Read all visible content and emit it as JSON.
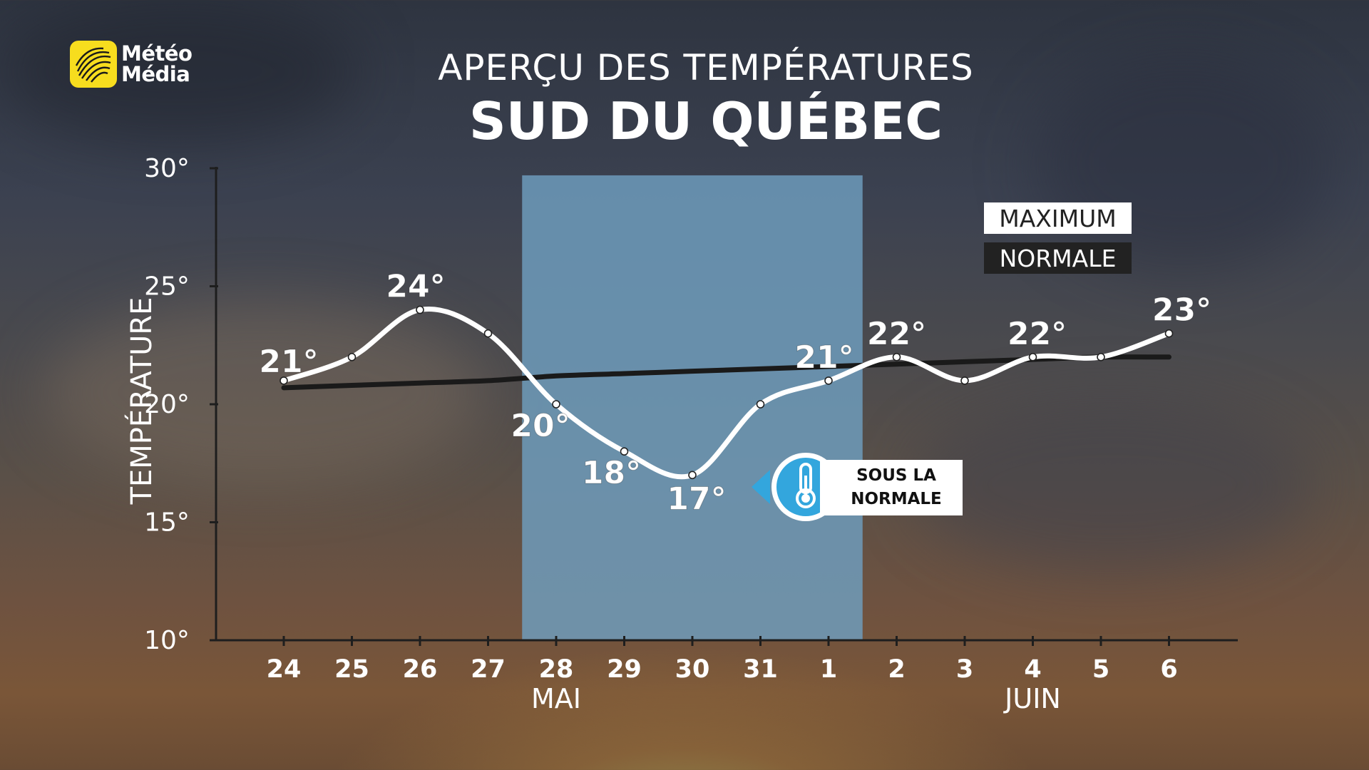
{
  "brand": {
    "logo_line1": "Météo",
    "logo_line2": "Média"
  },
  "header": {
    "title": "APERÇU DES TEMPÉRATURES",
    "subtitle": "SUD DU QUÉBEC"
  },
  "legend": {
    "maximum": "MAXIMUM",
    "normale": "NORMALE"
  },
  "badge": {
    "line1": "SOUS LA",
    "line2": "NORMALE",
    "icon": "thermometer-icon"
  },
  "colors": {
    "maximum_line": "#ffffff",
    "normal_line": "#1a1a1a",
    "highlight": "#6f9fbf",
    "badge_blue": "#33a6dd"
  },
  "chart_data": {
    "type": "line",
    "ylabel": "TEMPÉRATURE",
    "ylim": [
      10,
      30
    ],
    "yticks": [
      "10°",
      "15°",
      "20°",
      "25°",
      "30°"
    ],
    "categories": [
      "24",
      "25",
      "26",
      "27",
      "28",
      "29",
      "30",
      "31",
      "1",
      "2",
      "3",
      "4",
      "5",
      "6"
    ],
    "month_labels": [
      {
        "label": "MAI",
        "at": "28"
      },
      {
        "label": "JUIN",
        "at": "4"
      }
    ],
    "highlight_range": [
      "27",
      "1"
    ],
    "series": [
      {
        "name": "MAXIMUM",
        "values": [
          21,
          22,
          24,
          23,
          20,
          18,
          17,
          20,
          21,
          22,
          21,
          22,
          22,
          23
        ],
        "data_labels": [
          "21°",
          "",
          "24°",
          "",
          "20°",
          "18°",
          "17°",
          "",
          "21°",
          "22°",
          "",
          "22°",
          "",
          "23°"
        ]
      },
      {
        "name": "NORMALE",
        "values": [
          20.7,
          20.8,
          20.9,
          21.0,
          21.2,
          21.3,
          21.4,
          21.5,
          21.6,
          21.7,
          21.8,
          21.9,
          22.0,
          22.0
        ]
      }
    ]
  }
}
